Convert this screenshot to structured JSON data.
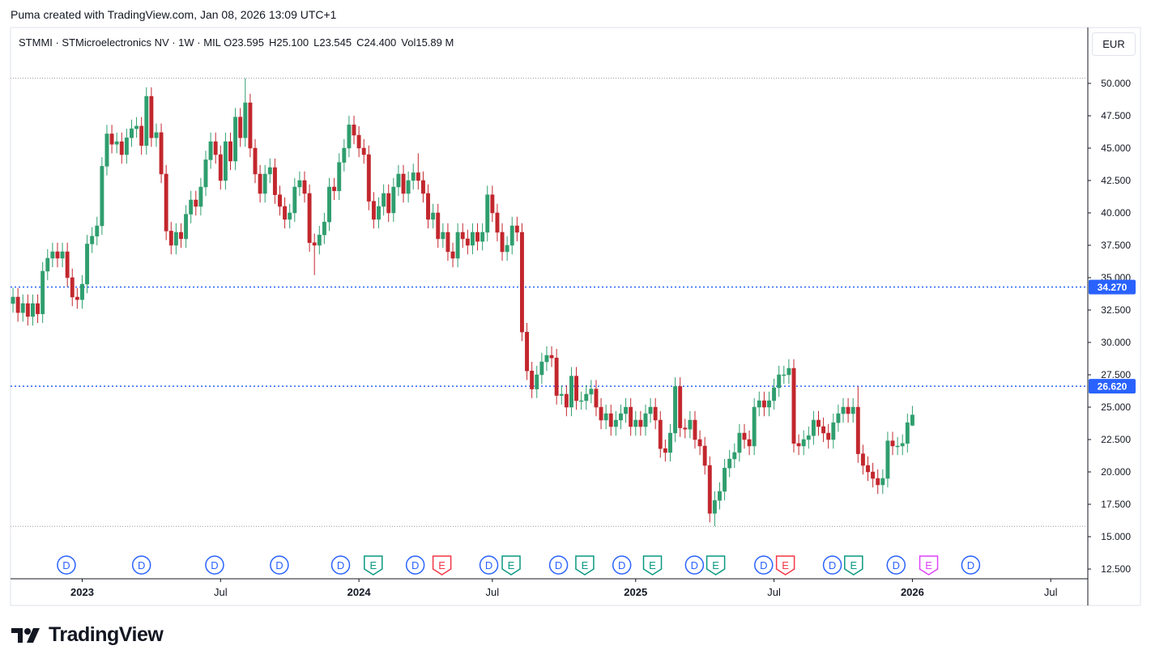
{
  "header": {
    "text": "Puma created with TradingView.com, Jan 08, 2026 13:09 UTC+1"
  },
  "footer": {
    "logo": "TradingView"
  },
  "chart_data": {
    "type": "candlestick",
    "symbol": "STMMI · STMicroelectronics NV · 1W · MIL",
    "legend": [
      {
        "label": "O",
        "value": "23.595"
      },
      {
        "label": "H",
        "value": "25.100"
      },
      {
        "label": "L",
        "value": "23.545"
      },
      {
        "label": "C",
        "value": "24.400"
      },
      {
        "label": "Vol",
        "value": "15.89 M"
      }
    ],
    "currency": "EUR",
    "up_color": "#2f9e6e",
    "down_color": "#c2272d",
    "categories": [
      null,
      null,
      null,
      null,
      null,
      null,
      null,
      null,
      null,
      null,
      null,
      null,
      null,
      null,
      null,
      null,
      null,
      null,
      null,
      null,
      null,
      null,
      null,
      null,
      null,
      null,
      null,
      null,
      null,
      null,
      null,
      null,
      null,
      null,
      null,
      null,
      null,
      null,
      null,
      null,
      null,
      null,
      null,
      null,
      null,
      null,
      null,
      null,
      null,
      null,
      null,
      null,
      null,
      null,
      null,
      null,
      null,
      null,
      null,
      null,
      null,
      null,
      null,
      null,
      null,
      null,
      null,
      null,
      null,
      null,
      null,
      null,
      null,
      null,
      null,
      null,
      null,
      null,
      null,
      null,
      null,
      null,
      null,
      null,
      null,
      null,
      null,
      null,
      null,
      null,
      null,
      null,
      null,
      null,
      null,
      null,
      null,
      null,
      null,
      null,
      null,
      null,
      null,
      null,
      null,
      null,
      null,
      null,
      null,
      null,
      null,
      null,
      null,
      null,
      null,
      null,
      null,
      null,
      null,
      null,
      null,
      null,
      null,
      null,
      null,
      null,
      null,
      null,
      null,
      null,
      null,
      null,
      null,
      null,
      null,
      null,
      null,
      null,
      null,
      null,
      null,
      null,
      null,
      null,
      null,
      null,
      null,
      null,
      null,
      null,
      null,
      null,
      null,
      null,
      null,
      null,
      null,
      null,
      null,
      null,
      null,
      null,
      null,
      null,
      null,
      null,
      null,
      null,
      null,
      null,
      null,
      null,
      null,
      null,
      null,
      null,
      null,
      null,
      null,
      null,
      null,
      null,
      null
    ],
    "open": [
      33.0,
      33.5,
      32.3,
      33.0,
      32.0,
      33.0,
      32.2,
      35.5,
      36.5,
      37.0,
      36.5,
      37.0,
      35.0,
      33.5,
      33.3,
      34.5,
      37.6,
      38.2,
      39.0,
      43.6,
      46.1,
      45.3,
      45.5,
      44.5,
      45.8,
      46.5,
      46.7,
      45.2,
      49.0,
      45.8,
      46.2,
      43.0,
      38.6,
      37.5,
      38.5,
      38.0,
      39.9,
      41.0,
      40.5,
      42.0,
      44.1,
      45.5,
      44.5,
      42.5,
      45.5,
      44.0,
      47.4,
      45.8,
      48.5,
      45.0,
      43.0,
      41.5,
      43.0,
      43.5,
      41.4,
      40.5,
      39.5,
      40.0,
      42.0,
      42.5,
      41.5,
      37.7,
      37.5,
      38.3,
      39.3,
      42.0,
      41.7,
      43.9,
      45.0,
      46.8,
      46.0,
      45.0,
      44.5,
      40.9,
      39.5,
      40.5,
      41.5,
      40.0,
      42.0,
      43.0,
      41.5,
      42.5,
      43.1,
      42.5,
      41.5,
      39.5,
      40.0,
      38.0,
      38.5,
      37.0,
      36.5,
      38.5,
      38.0,
      37.5,
      38.5,
      37.8,
      38.5,
      41.4,
      40.0,
      38.5,
      37.0,
      37.5,
      39.0,
      38.5,
      30.8,
      27.8,
      26.4,
      27.5,
      28.5,
      29.0,
      28.8,
      25.9,
      26.0,
      25.0,
      27.4,
      25.5,
      25.5,
      26.0,
      26.4,
      25.0,
      24.0,
      24.5,
      23.5,
      24.0,
      24.5,
      25.0,
      23.5,
      24.0,
      23.5,
      24.5,
      25.0,
      24.0,
      21.8,
      21.5,
      23.0,
      26.6,
      23.4,
      23.3,
      24.0,
      22.5,
      22.0,
      20.5,
      16.8,
      17.8,
      18.5,
      20.3,
      21.0,
      21.5,
      23.0,
      22.5,
      22.0,
      25.0,
      25.5,
      25.0,
      25.5,
      26.5,
      27.5,
      27.5,
      28.0,
      22.2,
      22.0,
      22.5,
      22.8,
      24.0,
      23.5,
      23.0,
      22.5,
      23.8,
      24.5,
      25.0,
      24.5,
      25.0,
      21.4,
      20.5,
      20.0,
      19.5,
      19.0,
      19.5,
      22.4,
      22.0,
      22.0,
      22.2,
      23.595
    ],
    "high": [
      34.2,
      34.2,
      33.7,
      33.7,
      33.7,
      33.7,
      36.2,
      37.2,
      37.7,
      37.7,
      37.7,
      37.7,
      35.7,
      34.2,
      35.2,
      38.3,
      38.9,
      39.7,
      44.3,
      46.8,
      46.8,
      46.2,
      46.2,
      46.5,
      47.2,
      47.4,
      47.4,
      49.7,
      49.7,
      46.9,
      46.9,
      43.7,
      39.3,
      39.2,
      39.2,
      40.6,
      41.7,
      41.7,
      42.7,
      44.8,
      46.2,
      46.2,
      45.2,
      46.2,
      46.2,
      48.1,
      48.1,
      50.4,
      49.2,
      45.7,
      43.7,
      43.7,
      44.2,
      44.2,
      42.1,
      41.2,
      40.7,
      42.7,
      43.2,
      43.2,
      42.2,
      38.4,
      39.0,
      40.0,
      42.7,
      42.7,
      44.6,
      45.7,
      47.5,
      47.5,
      46.7,
      45.7,
      45.2,
      41.6,
      41.2,
      42.2,
      42.2,
      42.7,
      43.7,
      43.7,
      43.2,
      43.8,
      44.6,
      43.2,
      42.2,
      40.7,
      40.7,
      39.2,
      39.2,
      37.7,
      39.2,
      39.2,
      38.7,
      39.2,
      39.2,
      39.2,
      42.1,
      42.1,
      40.7,
      39.2,
      38.2,
      39.7,
      39.7,
      39.2,
      31.5,
      28.5,
      28.2,
      29.2,
      29.7,
      29.7,
      29.5,
      26.7,
      26.7,
      28.1,
      28.1,
      26.2,
      26.7,
      27.1,
      27.1,
      25.7,
      25.2,
      25.2,
      24.7,
      25.2,
      25.7,
      25.7,
      24.7,
      24.7,
      25.2,
      25.7,
      25.7,
      24.7,
      22.5,
      23.7,
      27.3,
      27.3,
      24.1,
      24.7,
      24.7,
      23.2,
      22.7,
      21.2,
      18.5,
      19.2,
      21.0,
      21.7,
      22.2,
      23.7,
      23.7,
      23.2,
      25.7,
      26.2,
      26.2,
      26.2,
      27.2,
      28.2,
      28.2,
      28.7,
      28.7,
      22.9,
      23.2,
      23.5,
      24.7,
      24.7,
      24.2,
      23.7,
      24.5,
      25.2,
      25.7,
      25.7,
      25.7,
      26.6,
      22.1,
      21.2,
      20.7,
      20.2,
      20.2,
      23.1,
      23.1,
      22.7,
      22.9,
      24.5,
      25.1
    ],
    "low": [
      32.3,
      31.6,
      31.6,
      31.3,
      31.3,
      31.5,
      31.5,
      34.8,
      35.8,
      35.8,
      35.8,
      34.3,
      32.8,
      32.6,
      32.6,
      33.8,
      36.9,
      37.5,
      38.3,
      42.9,
      44.6,
      44.6,
      43.8,
      43.8,
      45.1,
      45.8,
      44.5,
      44.5,
      45.1,
      45.1,
      42.3,
      37.9,
      36.8,
      36.8,
      37.3,
      37.3,
      39.2,
      39.8,
      39.8,
      41.3,
      43.4,
      43.8,
      41.8,
      41.8,
      43.3,
      43.3,
      45.1,
      45.1,
      44.3,
      42.3,
      40.8,
      40.8,
      42.3,
      40.7,
      39.8,
      38.8,
      38.8,
      39.3,
      41.3,
      40.8,
      37.0,
      35.2,
      36.8,
      37.6,
      38.6,
      41.0,
      41.0,
      43.2,
      44.3,
      45.3,
      44.3,
      43.8,
      40.2,
      38.8,
      38.8,
      39.8,
      39.3,
      39.3,
      41.3,
      40.8,
      40.8,
      41.8,
      41.8,
      40.8,
      38.8,
      38.8,
      37.3,
      37.3,
      36.3,
      35.8,
      35.8,
      37.3,
      36.8,
      36.8,
      37.1,
      37.1,
      37.8,
      39.3,
      37.8,
      36.3,
      36.3,
      36.8,
      37.8,
      30.1,
      27.1,
      25.7,
      25.7,
      26.8,
      27.8,
      28.1,
      25.2,
      25.2,
      24.3,
      24.3,
      24.8,
      24.8,
      24.8,
      25.3,
      24.3,
      23.3,
      23.3,
      22.8,
      22.8,
      23.3,
      23.8,
      22.8,
      22.8,
      22.8,
      22.8,
      23.8,
      23.3,
      21.1,
      20.8,
      20.8,
      22.3,
      22.7,
      22.6,
      22.6,
      21.8,
      21.3,
      19.8,
      16.1,
      15.8,
      17.1,
      17.8,
      19.6,
      20.3,
      20.8,
      21.8,
      21.3,
      21.3,
      24.3,
      24.3,
      24.3,
      24.8,
      25.8,
      26.8,
      26.8,
      21.5,
      21.3,
      21.3,
      21.8,
      22.1,
      22.8,
      22.3,
      21.8,
      21.8,
      23.1,
      23.8,
      23.8,
      23.8,
      20.7,
      19.8,
      19.3,
      18.8,
      18.3,
      18.3,
      18.8,
      21.3,
      21.3,
      21.3,
      21.5,
      23.545
    ],
    "close": [
      33.5,
      32.3,
      33.0,
      32.0,
      33.0,
      32.2,
      35.5,
      36.5,
      37.0,
      36.5,
      37.0,
      35.0,
      33.5,
      33.3,
      34.5,
      37.6,
      38.2,
      39.0,
      43.6,
      46.1,
      45.3,
      45.5,
      44.5,
      45.8,
      46.5,
      46.7,
      45.2,
      49.0,
      45.8,
      46.2,
      43.0,
      38.6,
      37.5,
      38.5,
      38.0,
      39.9,
      41.0,
      40.5,
      42.0,
      44.1,
      45.5,
      44.5,
      42.5,
      45.5,
      44.0,
      47.4,
      45.8,
      48.5,
      45.0,
      43.0,
      41.5,
      43.0,
      43.5,
      41.4,
      40.5,
      39.5,
      40.0,
      42.0,
      42.5,
      41.5,
      37.7,
      37.5,
      38.3,
      39.3,
      42.0,
      41.7,
      43.9,
      45.0,
      46.8,
      46.0,
      45.0,
      44.5,
      40.9,
      39.5,
      40.5,
      41.5,
      40.0,
      42.0,
      43.0,
      41.5,
      42.5,
      43.1,
      42.5,
      41.5,
      39.5,
      40.0,
      38.0,
      38.5,
      37.0,
      36.5,
      38.5,
      38.0,
      37.5,
      38.5,
      37.8,
      38.5,
      41.4,
      40.0,
      38.5,
      37.0,
      37.5,
      39.0,
      38.5,
      30.8,
      27.8,
      26.4,
      27.5,
      28.5,
      29.0,
      28.8,
      25.9,
      26.0,
      25.0,
      27.4,
      25.5,
      25.5,
      26.0,
      26.4,
      25.0,
      24.0,
      24.5,
      23.5,
      24.0,
      24.5,
      25.0,
      23.5,
      24.0,
      23.5,
      24.5,
      25.0,
      24.0,
      21.8,
      21.5,
      23.0,
      26.6,
      23.4,
      23.3,
      24.0,
      22.5,
      22.0,
      20.5,
      16.8,
      17.8,
      18.5,
      20.3,
      21.0,
      21.5,
      23.0,
      22.5,
      22.0,
      25.0,
      25.5,
      25.0,
      25.5,
      26.5,
      27.5,
      27.5,
      28.0,
      22.2,
      22.0,
      22.5,
      22.8,
      24.0,
      23.5,
      23.0,
      22.5,
      23.8,
      24.5,
      25.0,
      24.5,
      25.0,
      21.4,
      20.5,
      20.0,
      19.5,
      19.0,
      19.5,
      22.4,
      22.0,
      22.0,
      22.2,
      23.8,
      24.4
    ],
    "xlim": [
      -0.5,
      217.5
    ],
    "xticks": [
      {
        "value": 14,
        "label": "2023"
      },
      {
        "value": 42,
        "label": "Jul"
      },
      {
        "value": 70,
        "label": "2024"
      },
      {
        "value": 97,
        "label": "Jul"
      },
      {
        "value": 126,
        "label": "2025"
      },
      {
        "value": 154,
        "label": "Jul"
      },
      {
        "value": 182,
        "label": "2026"
      },
      {
        "value": 210,
        "label": "Jul"
      }
    ],
    "ylim": [
      11.75,
      54.25
    ],
    "yticks": [
      {
        "value": 12.5,
        "label": "12.500"
      },
      {
        "value": 15,
        "label": "15.000"
      },
      {
        "value": 17.5,
        "label": "17.500"
      },
      {
        "value": 20,
        "label": "20.000"
      },
      {
        "value": 22.5,
        "label": "22.500"
      },
      {
        "value": 25,
        "label": "25.000"
      },
      {
        "value": 27.5,
        "label": "27.500"
      },
      {
        "value": 30,
        "label": "30.000"
      },
      {
        "value": 32.5,
        "label": "32.500"
      },
      {
        "value": 35,
        "label": "35.000"
      },
      {
        "value": 37.5,
        "label": "37.500"
      },
      {
        "value": 40,
        "label": "40.000"
      },
      {
        "value": 42.5,
        "label": "42.500"
      },
      {
        "value": 45,
        "label": "45.000"
      },
      {
        "value": 47.5,
        "label": "47.500"
      },
      {
        "value": 50,
        "label": "50.000"
      }
    ],
    "levels": [
      {
        "value": 34.27,
        "label": "34.270"
      },
      {
        "value": 26.62,
        "label": "26.620"
      }
    ],
    "level_color": "#2962ff",
    "extreme_lines": [
      50.4,
      15.8
    ],
    "events": [
      {
        "label": "D",
        "x": 10.8,
        "color": "#2962ff"
      },
      {
        "label": "D",
        "x": 26,
        "color": "#2962ff"
      },
      {
        "label": "D",
        "x": 40.8,
        "color": "#2962ff"
      },
      {
        "label": "D",
        "x": 53.9,
        "color": "#2962ff"
      },
      {
        "label": "D",
        "x": 66.3,
        "color": "#2962ff"
      },
      {
        "label": "E",
        "x": 72.9,
        "color": "#089981"
      },
      {
        "label": "D",
        "x": 81.4,
        "color": "#2962ff"
      },
      {
        "label": "E",
        "x": 86.8,
        "color": "#f23645"
      },
      {
        "label": "D",
        "x": 96.3,
        "color": "#2962ff"
      },
      {
        "label": "E",
        "x": 100.8,
        "color": "#089981"
      },
      {
        "label": "D",
        "x": 110.4,
        "color": "#2962ff"
      },
      {
        "label": "E",
        "x": 115.7,
        "color": "#089981"
      },
      {
        "label": "D",
        "x": 123.2,
        "color": "#2962ff"
      },
      {
        "label": "E",
        "x": 129.4,
        "color": "#089981"
      },
      {
        "label": "D",
        "x": 137.9,
        "color": "#2962ff"
      },
      {
        "label": "E",
        "x": 142.2,
        "color": "#089981"
      },
      {
        "label": "D",
        "x": 151.9,
        "color": "#2962ff"
      },
      {
        "label": "E",
        "x": 156.3,
        "color": "#f23645"
      },
      {
        "label": "D",
        "x": 165.8,
        "color": "#2962ff"
      },
      {
        "label": "E",
        "x": 170.1,
        "color": "#089981"
      },
      {
        "label": "D",
        "x": 178.7,
        "color": "#2962ff"
      },
      {
        "label": "E",
        "x": 185.3,
        "color": "#e040fb"
      },
      {
        "label": "D",
        "x": 193.8,
        "color": "#2962ff"
      }
    ]
  }
}
